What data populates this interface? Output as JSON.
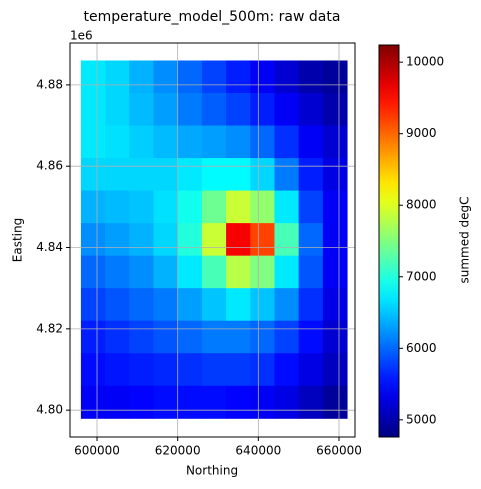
{
  "chart_data": {
    "type": "heatmap",
    "title": "temperature_model_500m: raw data",
    "x_label": "Northing",
    "y_label": "Easting",
    "y_offset_label": "1e6",
    "colorbar_label": "summed degC",
    "colormap": "jet",
    "grid": true,
    "xlim": [
      593300,
      663970
    ],
    "xticks": [
      600000,
      620000,
      640000,
      660000
    ],
    "ylim": [
      4.7934,
      4.8903
    ],
    "yticks": [
      {
        "value": 4.8,
        "label": "4.80"
      },
      {
        "value": 4.82,
        "label": "4.82"
      },
      {
        "value": 4.84,
        "label": "4.84"
      },
      {
        "value": 4.86,
        "label": "4.86"
      },
      {
        "value": 4.88,
        "label": "4.88"
      }
    ],
    "clim": [
      4760,
      10240
    ],
    "cticks": [
      5000,
      6000,
      7000,
      8000,
      9000,
      10000
    ],
    "x_edges": [
      596000,
      602000,
      608000,
      614000,
      620000,
      626000,
      632000,
      638000,
      644000,
      650000,
      656000,
      662000
    ],
    "y_edges": [
      4.886,
      4.878,
      4.87,
      4.862,
      4.854,
      4.846,
      4.838,
      4.83,
      4.822,
      4.814,
      4.806,
      4.798
    ],
    "z": [
      [
        6700,
        6600,
        6400,
        6200,
        6000,
        5800,
        5600,
        5400,
        5200,
        5000,
        4900
      ],
      [
        6700,
        6600,
        6450,
        6300,
        6100,
        5950,
        5800,
        5600,
        5400,
        5200,
        5000
      ],
      [
        6700,
        6650,
        6550,
        6450,
        6350,
        6300,
        6200,
        6000,
        5700,
        5400,
        5200
      ],
      [
        6600,
        6600,
        6600,
        6600,
        6700,
        6800,
        6800,
        6600,
        6100,
        5600,
        5300
      ],
      [
        6400,
        6450,
        6500,
        6650,
        6900,
        7400,
        7900,
        7600,
        6700,
        5800,
        5400
      ],
      [
        6200,
        6300,
        6400,
        6600,
        7000,
        7900,
        9600,
        9200,
        7200,
        6000,
        5400
      ],
      [
        6000,
        6100,
        6200,
        6400,
        6700,
        7200,
        7800,
        7500,
        6700,
        5900,
        5400
      ],
      [
        5800,
        5900,
        6000,
        6100,
        6300,
        6500,
        6700,
        6500,
        6200,
        5700,
        5300
      ],
      [
        5600,
        5700,
        5800,
        5900,
        6000,
        6100,
        6100,
        6000,
        5800,
        5500,
        5200
      ],
      [
        5500,
        5550,
        5600,
        5650,
        5700,
        5750,
        5750,
        5700,
        5500,
        5300,
        5100
      ],
      [
        5400,
        5400,
        5450,
        5500,
        5500,
        5500,
        5450,
        5400,
        5300,
        5100,
        4900
      ]
    ]
  }
}
